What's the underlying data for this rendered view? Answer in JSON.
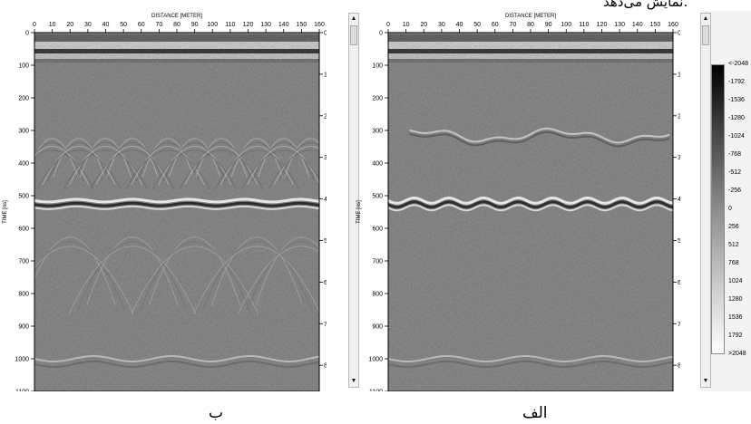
{
  "header_caption": "نمایش می‌دهد.",
  "panels": [
    {
      "id": "left",
      "caption": "ب",
      "x_axis_title": "DISTANCE [METER]",
      "x_ticks": [
        "0",
        "10",
        "20",
        "30",
        "40",
        "50",
        "60",
        "70",
        "80",
        "90",
        "100",
        "110",
        "120",
        "130",
        "140",
        "150",
        "160"
      ],
      "y_left_title": "TIME [ns]",
      "y_left_ticks": [
        "0",
        "100",
        "200",
        "300",
        "400",
        "500",
        "600",
        "700",
        "800",
        "900",
        "1000",
        "1100"
      ],
      "y_right_title": "DEPTH [METER] at v=0.10[m/ns]",
      "y_right_ticks": [
        "0",
        "10",
        "20",
        "30",
        "40",
        "50",
        "60",
        "70",
        "80"
      ],
      "image_desc": "hyperbolic reflections"
    },
    {
      "id": "right",
      "caption": "الف",
      "x_axis_title": "DISTANCE [METER]",
      "x_ticks": [
        "0",
        "10",
        "20",
        "30",
        "40",
        "50",
        "60",
        "70",
        "80",
        "90",
        "100",
        "110",
        "120",
        "130",
        "140",
        "150",
        "160"
      ],
      "y_left_title": "TIME [ns]",
      "y_left_ticks": [
        "0",
        "100",
        "200",
        "300",
        "400",
        "500",
        "600",
        "700",
        "800",
        "900",
        "1000",
        "1100"
      ],
      "y_right_title": "DEPTH [METER] at v=0.10[m/ns]",
      "y_right_ticks": [
        "0",
        "10",
        "20",
        "30",
        "40",
        "50",
        "60",
        "70",
        "80"
      ],
      "image_desc": "migrated section"
    }
  ],
  "colorbar": {
    "labels": [
      "<-2048",
      "-1792",
      "-1536",
      "-1280",
      "-1024",
      "-768",
      "-512",
      "-256",
      "0",
      "256",
      "512",
      "768",
      "1024",
      "1280",
      "1536",
      "1792",
      ">2048"
    ]
  },
  "scrollbar_icons": {
    "up": "arrow-up-icon",
    "down": "arrow-down-icon"
  }
}
